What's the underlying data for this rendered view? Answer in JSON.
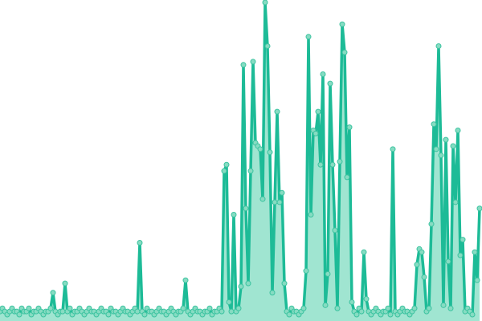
{
  "chart_data": {
    "type": "area",
    "title": "",
    "xlabel": "",
    "ylabel": "",
    "axes_visible": false,
    "grid": false,
    "ylim": [
      0,
      100
    ],
    "colors": {
      "line": "#1dbb97",
      "area": "#8fe0c9",
      "marker_fill": "#86dcc2",
      "marker_stroke": "#3cc3a0"
    },
    "series": [
      {
        "values": [
          1,
          2,
          1,
          0,
          1,
          2,
          1,
          1,
          0,
          2,
          1,
          1,
          2,
          0,
          1,
          1,
          2,
          1,
          0,
          1,
          1,
          2,
          7,
          1,
          0,
          1,
          1,
          10,
          1,
          2,
          0,
          1,
          1,
          2,
          1,
          0,
          1,
          2,
          1,
          1,
          0,
          1,
          2,
          1,
          1,
          0,
          2,
          1,
          1,
          0,
          1,
          2,
          1,
          1,
          0,
          1,
          2,
          1,
          23,
          1,
          0,
          2,
          1,
          1,
          0,
          1,
          2,
          1,
          1,
          0,
          1,
          2,
          1,
          0,
          1,
          1,
          2,
          11,
          1,
          0,
          1,
          2,
          1,
          1,
          0,
          1,
          1,
          2,
          0,
          1,
          1,
          2,
          1,
          46,
          48,
          4,
          1,
          32,
          1,
          2,
          9,
          80,
          34,
          10,
          46,
          81,
          55,
          54,
          53,
          37,
          100,
          86,
          52,
          7,
          36,
          65,
          36,
          39,
          10,
          1,
          0,
          2,
          1,
          1,
          0,
          1,
          2,
          14,
          89,
          32,
          59,
          58,
          65,
          48,
          77,
          3,
          13,
          74,
          48,
          27,
          2,
          49,
          93,
          84,
          44,
          60,
          4,
          1,
          0,
          2,
          1,
          20,
          5,
          1,
          0,
          1,
          2,
          1,
          0,
          1,
          1,
          2,
          0,
          53,
          1,
          0,
          1,
          2,
          1,
          1,
          0,
          1,
          2,
          16,
          21,
          20,
          12,
          1,
          2,
          29,
          61,
          53,
          86,
          51,
          3,
          56,
          17,
          2,
          54,
          36,
          59,
          19,
          24,
          1,
          2,
          1,
          0,
          20,
          11,
          34
        ]
      }
    ]
  }
}
